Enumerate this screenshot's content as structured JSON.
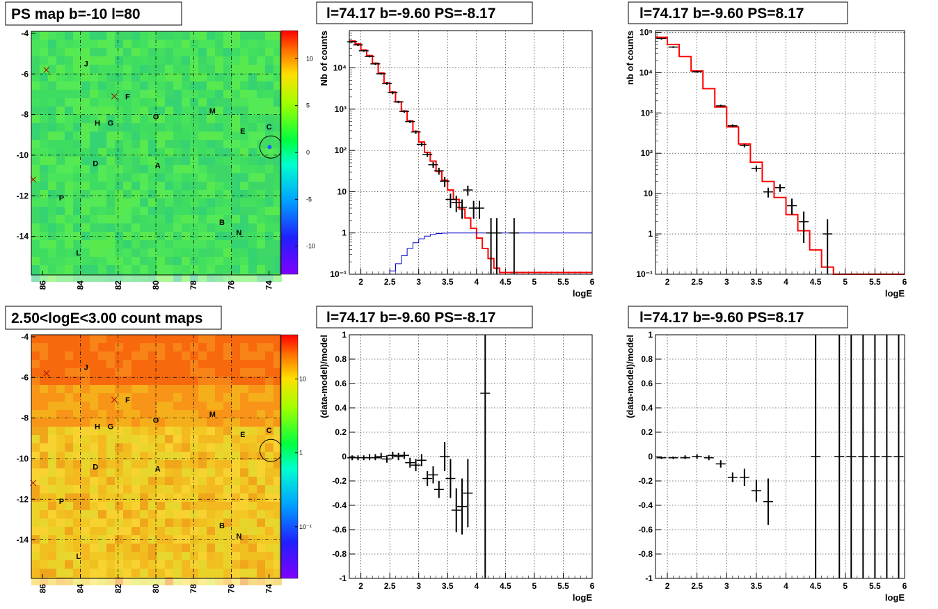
{
  "titles": {
    "map1": "PS map b=-10 l=80",
    "map2": "2.50<logE<3.00 count maps",
    "spec1": "l=74.17 b=-9.60 PS=-8.17",
    "spec2": "l=74.17 b=-9.60 PS=8.17",
    "res1": "l=74.17 b=-9.60 PS=-8.17",
    "res2": "l=74.17 b=-9.60 PS=8.17"
  },
  "axis_labels": {
    "spec1_y": "Nb of counts",
    "spec2_y": "nb of counts",
    "res_y": "(data-model)/model",
    "x": "logE"
  },
  "map_sources": [
    {
      "name": "J",
      "l": 83.7,
      "b": -5.5
    },
    {
      "name": "F",
      "l": 81.5,
      "b": -7.1
    },
    {
      "name": "H",
      "l": 83.1,
      "b": -8.4
    },
    {
      "name": "G",
      "l": 82.4,
      "b": -8.4
    },
    {
      "name": "O",
      "l": 80.0,
      "b": -8.1
    },
    {
      "name": "M",
      "l": 77.0,
      "b": -7.8
    },
    {
      "name": "E",
      "l": 75.4,
      "b": -8.8
    },
    {
      "name": "C",
      "l": 74.0,
      "b": -8.6
    },
    {
      "name": "D",
      "l": 83.2,
      "b": -10.4
    },
    {
      "name": "A",
      "l": 79.9,
      "b": -10.5
    },
    {
      "name": "P",
      "l": 85.0,
      "b": -12.1
    },
    {
      "name": "B",
      "l": 76.5,
      "b": -13.3
    },
    {
      "name": "N",
      "l": 75.6,
      "b": -13.8
    },
    {
      "name": "L",
      "l": 84.1,
      "b": -14.8
    }
  ],
  "map_crosses": [
    {
      "l": 85.8,
      "b": -5.8
    },
    {
      "l": 82.2,
      "b": -7.1
    },
    {
      "l": 86.5,
      "b": -11.2
    }
  ],
  "map_circle": {
    "l": 73.9,
    "b": -9.6
  },
  "map_axes": {
    "x_ticks": [
      "86",
      "84",
      "82",
      "80",
      "78",
      "76",
      "74"
    ],
    "y_ticks": [
      "-4",
      "-6",
      "-8",
      "-10",
      "-12",
      "-14"
    ]
  },
  "colorbar1": {
    "ticks": [
      "10",
      "5",
      "0",
      "-5",
      "-10"
    ]
  },
  "colorbar2": {
    "ticks": [
      "10",
      "1",
      "10⁻¹"
    ]
  },
  "chart_data": [
    {
      "type": "line",
      "title": "l=74.17 b=-9.60 PS=-8.17",
      "xlabel": "logE",
      "ylabel": "Nb of counts",
      "xlim": [
        1.8,
        6
      ],
      "ylim": [
        0.1,
        80000
      ],
      "yscale": "log",
      "x_ticks": [
        "2",
        "2.5",
        "3",
        "3.5",
        "4",
        "4.5",
        "5",
        "5.5",
        "6"
      ],
      "y_ticks": [
        "10⁻¹",
        "1",
        "10",
        "10²",
        "10³",
        "10⁴"
      ],
      "series": [
        {
          "color": "#ff0000",
          "x": [
            1.8,
            1.9,
            2.0,
            2.1,
            2.2,
            2.3,
            2.4,
            2.5,
            2.6,
            2.7,
            2.8,
            2.9,
            3.0,
            3.1,
            3.2,
            3.3,
            3.4,
            3.5,
            3.6,
            3.7,
            3.8,
            3.9,
            4.0,
            4.1,
            4.2,
            4.3,
            4.4,
            6.0
          ],
          "y": [
            45000,
            38000,
            27000,
            20000,
            13000,
            7500,
            4300,
            2600,
            1500,
            900,
            520,
            290,
            160,
            90,
            55,
            31,
            19,
            11,
            6.5,
            3.8,
            2.3,
            1.3,
            0.75,
            0.42,
            0.24,
            0.14,
            0.11,
            0.11
          ]
        },
        {
          "color": "#0000cc",
          "x": [
            1.8,
            2.5,
            2.6,
            2.7,
            2.8,
            2.9,
            3.0,
            3.1,
            3.2,
            3.3,
            3.4,
            3.5,
            3.6,
            3.7,
            6.0
          ],
          "y": [
            0.1,
            0.12,
            0.18,
            0.28,
            0.42,
            0.58,
            0.72,
            0.84,
            0.92,
            0.97,
            0.99,
            1.0,
            1.0,
            1.0,
            1.0
          ]
        }
      ],
      "points": [
        {
          "x": 1.85,
          "y": 43000,
          "lo": 41000,
          "hi": 45000
        },
        {
          "x": 1.95,
          "y": 36000,
          "lo": 34000,
          "hi": 38000
        },
        {
          "x": 2.05,
          "y": 26000,
          "lo": 24500,
          "hi": 27500
        },
        {
          "x": 2.15,
          "y": 19000,
          "lo": 18000,
          "hi": 20000
        },
        {
          "x": 2.25,
          "y": 12500,
          "lo": 11800,
          "hi": 13200
        },
        {
          "x": 2.35,
          "y": 7200,
          "lo": 6800,
          "hi": 7600
        },
        {
          "x": 2.45,
          "y": 4200,
          "lo": 3900,
          "hi": 4500
        },
        {
          "x": 2.55,
          "y": 2500,
          "lo": 2300,
          "hi": 2700
        },
        {
          "x": 2.65,
          "y": 1500,
          "lo": 1400,
          "hi": 1600
        },
        {
          "x": 2.75,
          "y": 880,
          "lo": 820,
          "hi": 940
        },
        {
          "x": 2.85,
          "y": 500,
          "lo": 460,
          "hi": 540
        },
        {
          "x": 2.95,
          "y": 280,
          "lo": 255,
          "hi": 305
        },
        {
          "x": 3.05,
          "y": 140,
          "lo": 125,
          "hi": 155
        },
        {
          "x": 3.15,
          "y": 80,
          "lo": 70,
          "hi": 90
        },
        {
          "x": 3.25,
          "y": 45,
          "lo": 38,
          "hi": 52
        },
        {
          "x": 3.35,
          "y": 32,
          "lo": 26,
          "hi": 38
        },
        {
          "x": 3.45,
          "y": 18,
          "lo": 13,
          "hi": 23
        },
        {
          "x": 3.55,
          "y": 6.5,
          "lo": 4.0,
          "hi": 9.0
        },
        {
          "x": 3.65,
          "y": 5.5,
          "lo": 3.2,
          "hi": 8.0
        },
        {
          "x": 3.75,
          "y": 4.2,
          "lo": 2.2,
          "hi": 6.5
        },
        {
          "x": 3.85,
          "y": 11,
          "lo": 8,
          "hi": 14
        },
        {
          "x": 3.95,
          "y": 4,
          "lo": 2.2,
          "hi": 6
        },
        {
          "x": 4.05,
          "y": 4,
          "lo": 2.2,
          "hi": 6
        },
        {
          "x": 4.25,
          "y": 1,
          "lo": 0.1,
          "hi": 2.3
        },
        {
          "x": 4.35,
          "y": 1,
          "lo": 0.1,
          "hi": 2.3
        },
        {
          "x": 4.65,
          "y": 1,
          "lo": 0.1,
          "hi": 2.3
        }
      ]
    },
    {
      "type": "line",
      "title": "l=74.17 b=-9.60 PS=8.17",
      "xlabel": "logE",
      "ylabel": "nb of counts",
      "xlim": [
        1.8,
        6
      ],
      "ylim": [
        0.1,
        110000
      ],
      "yscale": "log",
      "x_ticks": [
        "2",
        "2.5",
        "3",
        "3.5",
        "4",
        "4.5",
        "5",
        "5.5",
        "6"
      ],
      "y_ticks": [
        "10⁻¹",
        "1",
        "10",
        "10²",
        "10³",
        "10⁴",
        "10⁵"
      ],
      "series": [
        {
          "color": "#ff0000",
          "x": [
            1.8,
            2.0,
            2.2,
            2.4,
            2.6,
            2.8,
            3.0,
            3.2,
            3.4,
            3.6,
            3.8,
            4.0,
            4.2,
            4.4,
            4.6,
            4.8,
            6.0
          ],
          "y": [
            75000,
            50000,
            25000,
            11000,
            4000,
            1400,
            450,
            170,
            60,
            20,
            8,
            3,
            1.2,
            0.4,
            0.15,
            0.1,
            0.1
          ]
        }
      ],
      "points": [
        {
          "x": 1.9,
          "y": 70000,
          "lo": 66000,
          "hi": 74000
        },
        {
          "x": 2.1,
          "y": 43000,
          "lo": 41000,
          "hi": 45000
        },
        {
          "x": 2.5,
          "y": 10500,
          "lo": 10000,
          "hi": 11000
        },
        {
          "x": 2.9,
          "y": 1500,
          "lo": 1400,
          "hi": 1600
        },
        {
          "x": 3.1,
          "y": 480,
          "lo": 440,
          "hi": 520
        },
        {
          "x": 3.3,
          "y": 155,
          "lo": 140,
          "hi": 170
        },
        {
          "x": 3.5,
          "y": 42,
          "lo": 35,
          "hi": 49
        },
        {
          "x": 3.7,
          "y": 11,
          "lo": 8,
          "hi": 14
        },
        {
          "x": 3.9,
          "y": 14,
          "lo": 11,
          "hi": 17
        },
        {
          "x": 4.1,
          "y": 5,
          "lo": 3,
          "hi": 7.5
        },
        {
          "x": 4.3,
          "y": 2,
          "lo": 0.6,
          "hi": 3.6
        },
        {
          "x": 4.7,
          "y": 1,
          "lo": 0.1,
          "hi": 2.3
        }
      ]
    },
    {
      "type": "scatter",
      "title": "l=74.17 b=-9.60 PS=-8.17",
      "xlabel": "logE",
      "ylabel": "(data-model)/model",
      "xlim": [
        1.8,
        6
      ],
      "ylim": [
        -1,
        1
      ],
      "x_ticks": [
        "2",
        "2.5",
        "3",
        "3.5",
        "4",
        "4.5",
        "5",
        "5.5",
        "6"
      ],
      "y_ticks": [
        "-1",
        "-0.8",
        "-0.6",
        "-0.4",
        "-0.2",
        "0",
        "0.2",
        "0.4",
        "0.6",
        "0.8",
        "1"
      ],
      "points": [
        {
          "x": 1.85,
          "y": -0.01,
          "lo": -0.03,
          "hi": 0.01
        },
        {
          "x": 1.95,
          "y": -0.01,
          "lo": -0.03,
          "hi": 0.01
        },
        {
          "x": 2.05,
          "y": -0.01,
          "lo": -0.03,
          "hi": 0.01
        },
        {
          "x": 2.15,
          "y": -0.01,
          "lo": -0.03,
          "hi": 0.02
        },
        {
          "x": 2.25,
          "y": -0.01,
          "lo": -0.03,
          "hi": 0.02
        },
        {
          "x": 2.35,
          "y": 0.0,
          "lo": -0.02,
          "hi": 0.03
        },
        {
          "x": 2.45,
          "y": -0.02,
          "lo": -0.05,
          "hi": 0.01
        },
        {
          "x": 2.55,
          "y": 0.01,
          "lo": -0.02,
          "hi": 0.04
        },
        {
          "x": 2.65,
          "y": 0.0,
          "lo": -0.03,
          "hi": 0.03
        },
        {
          "x": 2.75,
          "y": 0.01,
          "lo": -0.02,
          "hi": 0.04
        },
        {
          "x": 2.85,
          "y": -0.05,
          "lo": -0.09,
          "hi": -0.01
        },
        {
          "x": 2.95,
          "y": -0.07,
          "lo": -0.12,
          "hi": -0.02
        },
        {
          "x": 3.05,
          "y": -0.03,
          "lo": -0.08,
          "hi": 0.02
        },
        {
          "x": 3.15,
          "y": -0.18,
          "lo": -0.24,
          "hi": -0.12
        },
        {
          "x": 3.25,
          "y": -0.15,
          "lo": -0.22,
          "hi": -0.08
        },
        {
          "x": 3.35,
          "y": -0.27,
          "lo": -0.34,
          "hi": -0.2
        },
        {
          "x": 3.45,
          "y": 0.0,
          "lo": -0.12,
          "hi": 0.12
        },
        {
          "x": 3.55,
          "y": -0.18,
          "lo": -0.34,
          "hi": -0.02
        },
        {
          "x": 3.65,
          "y": -0.44,
          "lo": -0.62,
          "hi": -0.26
        },
        {
          "x": 3.75,
          "y": -0.41,
          "lo": -0.64,
          "hi": -0.18
        },
        {
          "x": 3.85,
          "y": -0.3,
          "lo": -0.58,
          "hi": -0.02
        },
        {
          "x": 4.15,
          "y": 0.52,
          "lo": -1,
          "hi": 1
        }
      ]
    },
    {
      "type": "scatter",
      "title": "l=74.17 b=-9.60 PS=8.17",
      "xlabel": "logE",
      "ylabel": "(data-model)/model",
      "xlim": [
        1.8,
        6
      ],
      "ylim": [
        -1,
        1
      ],
      "x_ticks": [
        "2",
        "2.5",
        "3",
        "3.5",
        "4",
        "4.5",
        "5",
        "5.5",
        "6"
      ],
      "y_ticks": [
        "-1",
        "-0.8",
        "-0.6",
        "-0.4",
        "-0.2",
        "0",
        "0.2",
        "0.4",
        "0.6",
        "0.8",
        "1"
      ],
      "points": [
        {
          "x": 1.9,
          "y": -0.01,
          "lo": -0.02,
          "hi": 0.0
        },
        {
          "x": 2.1,
          "y": -0.01,
          "lo": -0.02,
          "hi": 0.0
        },
        {
          "x": 2.3,
          "y": -0.01,
          "lo": -0.02,
          "hi": 0.01
        },
        {
          "x": 2.5,
          "y": 0.0,
          "lo": -0.02,
          "hi": 0.02
        },
        {
          "x": 2.7,
          "y": -0.01,
          "lo": -0.03,
          "hi": 0.01
        },
        {
          "x": 2.9,
          "y": -0.06,
          "lo": -0.09,
          "hi": -0.03
        },
        {
          "x": 3.1,
          "y": -0.17,
          "lo": -0.21,
          "hi": -0.13
        },
        {
          "x": 3.3,
          "y": -0.17,
          "lo": -0.24,
          "hi": -0.1
        },
        {
          "x": 3.5,
          "y": -0.28,
          "lo": -0.37,
          "hi": -0.19
        },
        {
          "x": 3.7,
          "y": -0.37,
          "lo": -0.56,
          "hi": -0.18
        },
        {
          "x": 4.5,
          "y": 0,
          "lo": -1,
          "hi": 1
        },
        {
          "x": 4.9,
          "y": 0,
          "lo": -1,
          "hi": 1
        },
        {
          "x": 5.1,
          "y": 0,
          "lo": -1,
          "hi": 1
        },
        {
          "x": 5.3,
          "y": 0,
          "lo": -1,
          "hi": 1
        },
        {
          "x": 5.5,
          "y": 0,
          "lo": -1,
          "hi": 1
        },
        {
          "x": 5.7,
          "y": 0,
          "lo": -1,
          "hi": 1
        },
        {
          "x": 5.9,
          "y": 0,
          "lo": -1,
          "hi": 1
        }
      ]
    }
  ]
}
